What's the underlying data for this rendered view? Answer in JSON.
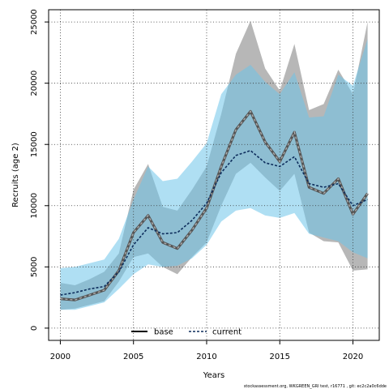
{
  "chart_data": {
    "type": "line",
    "title": "",
    "xlabel": "Years",
    "ylabel": "Recruits (age 2)",
    "xlim": [
      1999.2,
      2021.8
    ],
    "ylim": [
      -1000,
      26000
    ],
    "xticks": [
      2000,
      2005,
      2010,
      2015,
      2020
    ],
    "yticks": [
      0,
      5000,
      10000,
      15000,
      20000,
      25000
    ],
    "grid": true,
    "legend_position": "bottom-center",
    "x": [
      2000,
      2001,
      2002,
      2003,
      2004,
      2005,
      2006,
      2007,
      2008,
      2009,
      2010,
      2011,
      2012,
      2013,
      2014,
      2015,
      2016,
      2017,
      2018,
      2019,
      2020,
      2021
    ],
    "series": [
      {
        "name": "base",
        "style": "solid",
        "color": "#000000",
        "line_color": "#555555",
        "band_color": "#9f9f9f",
        "values": [
          2400,
          2300,
          2700,
          3100,
          4700,
          7800,
          9200,
          7000,
          6500,
          8000,
          9800,
          13200,
          16200,
          17700,
          15200,
          13600,
          16000,
          11500,
          11000,
          12200,
          9300,
          11000
        ],
        "lower": [
          1500,
          1600,
          1900,
          2200,
          3800,
          5800,
          6100,
          5000,
          4400,
          5800,
          7000,
          10000,
          12600,
          13500,
          12300,
          11200,
          12600,
          7800,
          7100,
          7000,
          4700,
          4800
        ],
        "upper": [
          3700,
          3500,
          4000,
          4600,
          6100,
          11300,
          13400,
          9900,
          9600,
          11300,
          13200,
          17500,
          22400,
          25100,
          21200,
          19400,
          23200,
          17800,
          18300,
          21100,
          19100,
          25000
        ]
      },
      {
        "name": "current",
        "style": "dashed",
        "color": "#0d2d5c",
        "line_color": "#0d2d5c",
        "band_color": "#6ec4ea",
        "values": [
          2700,
          2900,
          3200,
          3400,
          4600,
          6800,
          8200,
          7700,
          7800,
          8800,
          10200,
          12700,
          14100,
          14500,
          13500,
          13200,
          14000,
          11800,
          11500,
          11800,
          10000,
          10500
        ],
        "lower": [
          1500,
          1500,
          1800,
          2100,
          3200,
          4400,
          5200,
          5000,
          5100,
          5700,
          6800,
          8700,
          9600,
          9800,
          9200,
          9000,
          9400,
          7700,
          7400,
          7100,
          6200,
          5700
        ],
        "upper": [
          4900,
          5000,
          5300,
          5600,
          7300,
          10500,
          13200,
          12000,
          12200,
          13600,
          15100,
          19100,
          20700,
          21500,
          20100,
          19100,
          20900,
          17200,
          17300,
          20700,
          19800,
          23600
        ]
      }
    ],
    "footnote": "stockassessment.org, WKGREEN_GRI test, r16771 , git: ec2c2a0c6dde"
  }
}
